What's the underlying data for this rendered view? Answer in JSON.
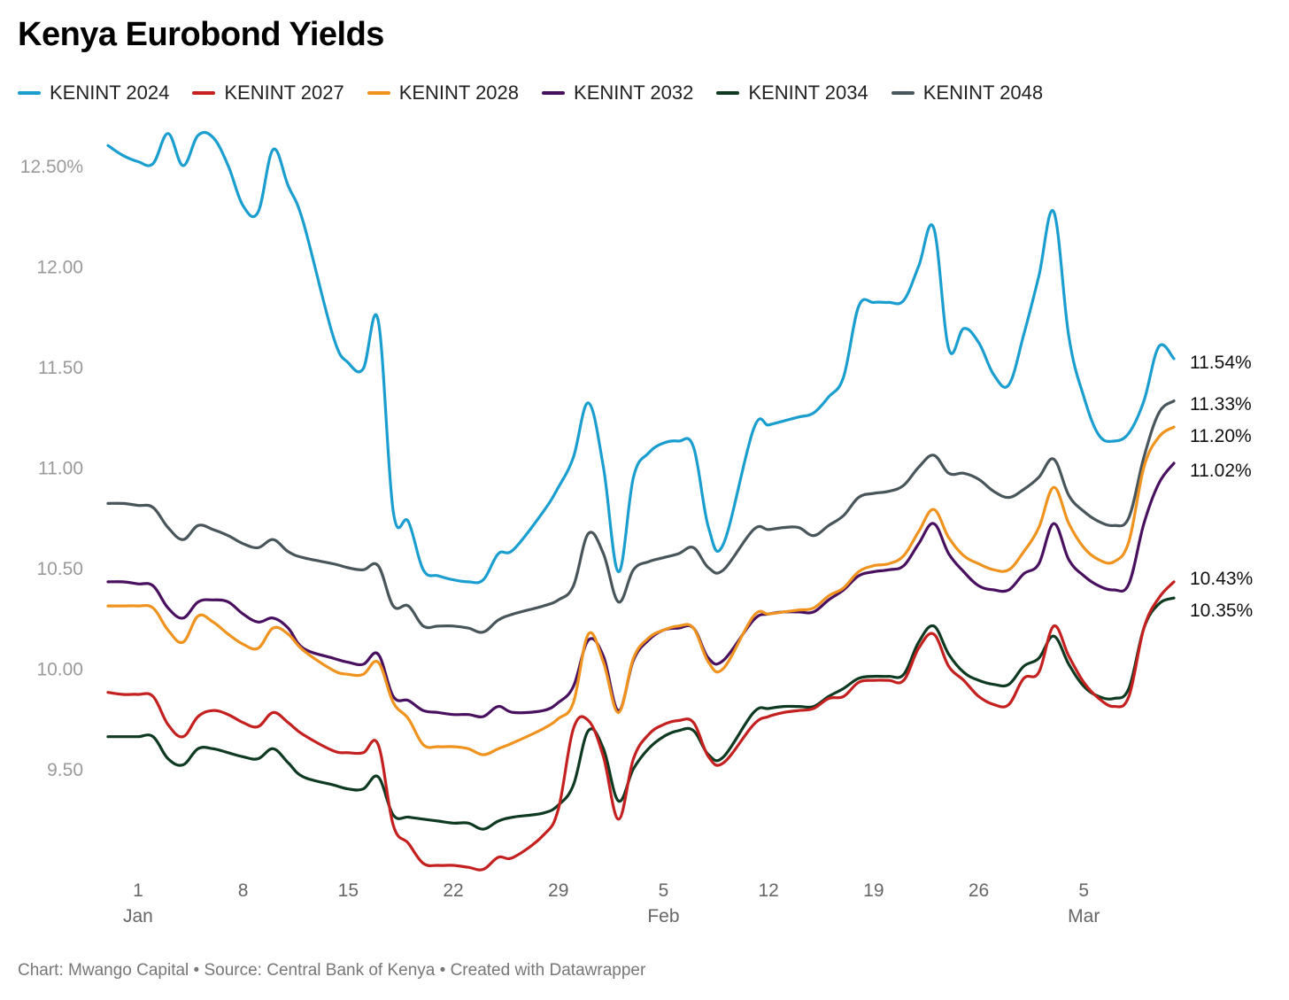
{
  "title": "Kenya Eurobond Yields",
  "footer": {
    "chart": "Chart: Mwango Capital",
    "sep1": " • ",
    "source": "Source: Central Bank of Kenya",
    "sep2": " • ",
    "created": "Created with Datawrapper"
  },
  "chart_data": {
    "type": "line",
    "title": "Kenya Eurobond Yields",
    "xlabel": "",
    "ylabel": "",
    "x_range_days": [
      -1,
      69
    ],
    "ylim": [
      9.0,
      12.7
    ],
    "grid": false,
    "legend": "top-left",
    "y_ticks": [
      {
        "value": 12.5,
        "label": "12.50%"
      },
      {
        "value": 12.0,
        "label": "12.00"
      },
      {
        "value": 11.5,
        "label": "11.50"
      },
      {
        "value": 11.0,
        "label": "11.00"
      },
      {
        "value": 10.5,
        "label": "10.50"
      },
      {
        "value": 10.0,
        "label": "10.00"
      },
      {
        "value": 9.5,
        "label": "9.50"
      }
    ],
    "x_ticks": [
      {
        "day": 0,
        "label": "1",
        "sub": "Jan"
      },
      {
        "day": 7,
        "label": "8",
        "sub": ""
      },
      {
        "day": 14,
        "label": "15",
        "sub": ""
      },
      {
        "day": 21,
        "label": "22",
        "sub": ""
      },
      {
        "day": 28,
        "label": "29",
        "sub": ""
      },
      {
        "day": 35,
        "label": "5",
        "sub": "Feb"
      },
      {
        "day": 42,
        "label": "12",
        "sub": ""
      },
      {
        "day": 49,
        "label": "19",
        "sub": ""
      },
      {
        "day": 56,
        "label": "26",
        "sub": ""
      },
      {
        "day": 63,
        "label": "5",
        "sub": "Mar"
      }
    ],
    "x": [
      -2,
      -1,
      0,
      1,
      2,
      3,
      4,
      5,
      6,
      7,
      8,
      9,
      10,
      11,
      13,
      14,
      15,
      16,
      17,
      18,
      19,
      20,
      21,
      22,
      23,
      24,
      25,
      27,
      28,
      29,
      30,
      31,
      32,
      33,
      34,
      35,
      36,
      37,
      38,
      39,
      41,
      42,
      43,
      44,
      45,
      46,
      47,
      48,
      49,
      50,
      51,
      52,
      53,
      54,
      55,
      56,
      57,
      58,
      59,
      60,
      61,
      62,
      63,
      64,
      65,
      66,
      67,
      68,
      69
    ],
    "series": [
      {
        "name": "KENINT 2024",
        "color": "#1a9ed0",
        "end_label": "11.54%",
        "values": [
          12.6,
          12.55,
          12.52,
          12.51,
          12.66,
          12.5,
          12.65,
          12.64,
          12.5,
          12.3,
          12.27,
          12.58,
          12.4,
          12.22,
          11.65,
          11.52,
          11.49,
          11.73,
          10.78,
          10.73,
          10.49,
          10.46,
          10.44,
          10.43,
          10.44,
          10.57,
          10.59,
          10.78,
          10.9,
          11.05,
          11.32,
          11.0,
          10.48,
          10.95,
          11.07,
          11.12,
          11.13,
          11.1,
          10.7,
          10.62,
          11.19,
          11.21,
          11.23,
          11.25,
          11.27,
          11.35,
          11.45,
          11.8,
          11.82,
          11.82,
          11.83,
          12.0,
          12.19,
          11.59,
          11.69,
          11.62,
          11.46,
          11.41,
          11.66,
          11.95,
          12.27,
          11.65,
          11.35,
          11.16,
          11.13,
          11.17,
          11.33,
          11.6,
          11.54
        ]
      },
      {
        "name": "KENINT 2027",
        "color": "#c42020",
        "end_label": "10.43%",
        "values": [
          9.88,
          9.87,
          9.87,
          9.86,
          9.72,
          9.66,
          9.76,
          9.79,
          9.77,
          9.73,
          9.71,
          9.78,
          9.73,
          9.67,
          9.59,
          9.58,
          9.58,
          9.62,
          9.22,
          9.13,
          9.03,
          9.02,
          9.02,
          9.01,
          9.0,
          9.06,
          9.06,
          9.17,
          9.3,
          9.7,
          9.74,
          9.56,
          9.25,
          9.55,
          9.67,
          9.72,
          9.74,
          9.73,
          9.56,
          9.53,
          9.72,
          9.76,
          9.78,
          9.79,
          9.8,
          9.85,
          9.86,
          9.93,
          9.94,
          9.94,
          9.94,
          10.1,
          10.17,
          10.01,
          9.94,
          9.86,
          9.82,
          9.82,
          9.95,
          9.98,
          10.21,
          10.06,
          9.93,
          9.85,
          9.81,
          9.86,
          10.2,
          10.35,
          10.43
        ]
      },
      {
        "name": "KENINT 2028",
        "color": "#f0931e",
        "end_label": "11.20%",
        "values": [
          10.31,
          10.31,
          10.31,
          10.3,
          10.19,
          10.13,
          10.26,
          10.23,
          10.17,
          10.12,
          10.1,
          10.2,
          10.17,
          10.09,
          9.99,
          9.97,
          9.97,
          10.03,
          9.83,
          9.75,
          9.62,
          9.61,
          9.61,
          9.6,
          9.57,
          9.6,
          9.63,
          9.7,
          9.75,
          9.83,
          10.17,
          10.03,
          9.78,
          10.05,
          10.15,
          10.19,
          10.21,
          10.2,
          10.03,
          10.0,
          10.26,
          10.27,
          10.28,
          10.29,
          10.3,
          10.36,
          10.4,
          10.48,
          10.51,
          10.52,
          10.56,
          10.68,
          10.79,
          10.65,
          10.56,
          10.52,
          10.49,
          10.49,
          10.58,
          10.7,
          10.9,
          10.72,
          10.6,
          10.54,
          10.53,
          10.63,
          11.0,
          11.15,
          11.2
        ]
      },
      {
        "name": "KENINT 2032",
        "color": "#4a1060",
        "end_label": "11.02%",
        "values": [
          10.43,
          10.43,
          10.42,
          10.41,
          10.3,
          10.25,
          10.33,
          10.34,
          10.33,
          10.27,
          10.23,
          10.25,
          10.2,
          10.1,
          10.05,
          10.03,
          10.02,
          10.07,
          9.86,
          9.84,
          9.79,
          9.78,
          9.77,
          9.77,
          9.76,
          9.81,
          9.78,
          9.79,
          9.83,
          9.91,
          10.14,
          10.06,
          9.79,
          10.04,
          10.14,
          10.19,
          10.2,
          10.2,
          10.05,
          10.04,
          10.24,
          10.27,
          10.28,
          10.28,
          10.28,
          10.34,
          10.39,
          10.46,
          10.48,
          10.49,
          10.51,
          10.62,
          10.72,
          10.57,
          10.48,
          10.41,
          10.39,
          10.39,
          10.47,
          10.52,
          10.72,
          10.54,
          10.46,
          10.41,
          10.39,
          10.42,
          10.72,
          10.92,
          11.02
        ]
      },
      {
        "name": "KENINT 2034",
        "color": "#0d3a20",
        "end_label": "10.35%",
        "values": [
          9.66,
          9.66,
          9.66,
          9.66,
          9.55,
          9.52,
          9.6,
          9.6,
          9.58,
          9.56,
          9.55,
          9.6,
          9.53,
          9.46,
          9.42,
          9.4,
          9.4,
          9.46,
          9.27,
          9.26,
          9.25,
          9.24,
          9.23,
          9.23,
          9.2,
          9.24,
          9.26,
          9.28,
          9.32,
          9.42,
          9.69,
          9.6,
          9.34,
          9.5,
          9.6,
          9.66,
          9.69,
          9.69,
          9.57,
          9.56,
          9.78,
          9.8,
          9.81,
          9.81,
          9.81,
          9.86,
          9.9,
          9.95,
          9.96,
          9.96,
          9.97,
          10.13,
          10.21,
          10.07,
          9.98,
          9.94,
          9.92,
          9.92,
          10.01,
          10.05,
          10.16,
          10.02,
          9.91,
          9.86,
          9.85,
          9.9,
          10.2,
          10.32,
          10.35
        ]
      },
      {
        "name": "KENINT 2048",
        "color": "#48565c",
        "end_label": "11.33%",
        "values": [
          10.82,
          10.82,
          10.81,
          10.8,
          10.7,
          10.64,
          10.71,
          10.69,
          10.66,
          10.62,
          10.6,
          10.64,
          10.58,
          10.55,
          10.52,
          10.5,
          10.49,
          10.51,
          10.31,
          10.31,
          10.21,
          10.21,
          10.21,
          10.2,
          10.18,
          10.24,
          10.27,
          10.31,
          10.34,
          10.41,
          10.67,
          10.57,
          10.33,
          10.49,
          10.53,
          10.55,
          10.57,
          10.6,
          10.5,
          10.49,
          10.69,
          10.69,
          10.7,
          10.7,
          10.66,
          10.71,
          10.76,
          10.85,
          10.87,
          10.88,
          10.91,
          11.0,
          11.06,
          10.97,
          10.97,
          10.94,
          10.88,
          10.85,
          10.89,
          10.95,
          11.04,
          10.86,
          10.78,
          10.73,
          10.71,
          10.75,
          11.05,
          11.27,
          11.33
        ]
      }
    ]
  }
}
